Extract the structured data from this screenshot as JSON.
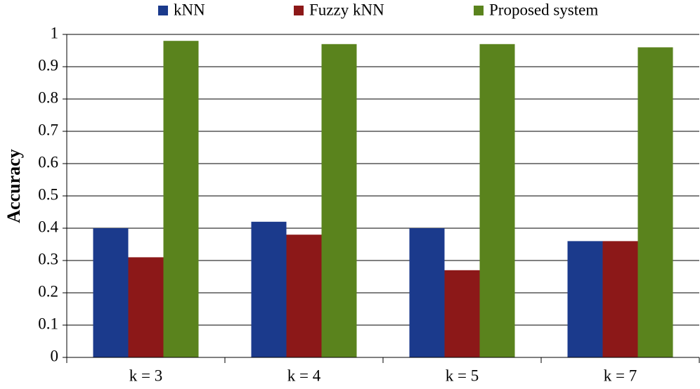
{
  "chart_data": {
    "type": "bar",
    "y_label": "Accuracy",
    "categories": [
      "k = 3",
      "k = 4",
      "k = 5",
      "k = 7"
    ],
    "series": [
      {
        "name": "kNN",
        "color": "#1b3a8c",
        "values": [
          0.4,
          0.42,
          0.4,
          0.36
        ]
      },
      {
        "name": "Fuzzy kNN",
        "color": "#8c1818",
        "values": [
          0.31,
          0.38,
          0.27,
          0.36
        ]
      },
      {
        "name": "Proposed system",
        "color": "#5a831d",
        "values": [
          0.98,
          0.97,
          0.97,
          0.96
        ]
      }
    ],
    "ylim": [
      0,
      1
    ],
    "yticks": [
      0,
      0.1,
      0.2,
      0.3,
      0.4,
      0.5,
      0.6,
      0.7,
      0.8,
      0.9,
      1
    ],
    "grid": true
  }
}
